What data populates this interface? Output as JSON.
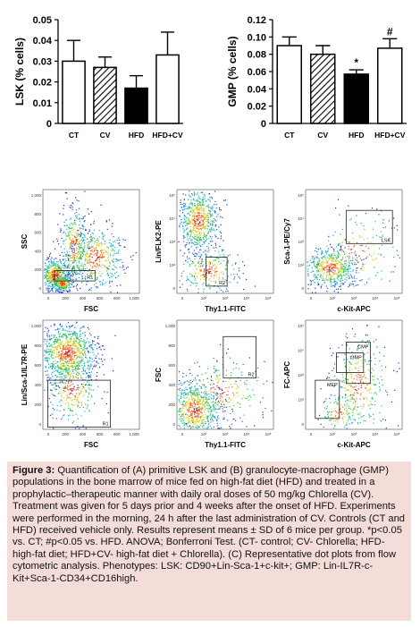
{
  "chart_data": [
    {
      "type": "bar",
      "panel": "A",
      "ylabel": "LSK (% cells)",
      "categories": [
        "CT",
        "CV",
        "HFD",
        "HFD+CV"
      ],
      "values": [
        0.03,
        0.027,
        0.017,
        0.033
      ],
      "errors": [
        0.01,
        0.005,
        0.006,
        0.011
      ],
      "ylim": [
        0,
        0.05
      ],
      "yticks": [
        "0",
        "0.01",
        "0.02",
        "0.03",
        "0.04",
        "0.05"
      ],
      "annotations": [
        "",
        "",
        "",
        ""
      ],
      "fills": [
        "white",
        "hatch",
        "black",
        "white"
      ]
    },
    {
      "type": "bar",
      "panel": "B",
      "ylabel": "GMP (% cells)",
      "categories": [
        "CT",
        "CV",
        "HFD",
        "HFD+CV"
      ],
      "values": [
        0.09,
        0.08,
        0.057,
        0.087
      ],
      "errors": [
        0.01,
        0.01,
        0.005,
        0.011
      ],
      "ylim": [
        0,
        0.12
      ],
      "yticks": [
        "0",
        "0.02",
        "0.04",
        "0.06",
        "0.08",
        "0.10",
        "0.12"
      ],
      "annotations": [
        "",
        "",
        "*",
        "#"
      ],
      "fills": [
        "white",
        "hatch",
        "black",
        "white"
      ]
    }
  ],
  "flow": {
    "plots": [
      {
        "ylabel": "SSC",
        "xlabel": "FSC",
        "gate": "R1"
      },
      {
        "ylabel": "Lin/FLK2-PE",
        "xlabel": "Thy1.1-FITC",
        "gate": "R2"
      },
      {
        "ylabel": "Sca-1-PE/Cy7",
        "xlabel": "c-Kit-APC",
        "gate": "LSK"
      },
      {
        "ylabel": "Lin/Sca-1/IL7R-PE",
        "xlabel": "FSC",
        "gate": "R1"
      },
      {
        "ylabel": "FSC",
        "xlabel": "Thy1.1-FITC",
        "gate": "R2"
      },
      {
        "ylabel": "FC-APC",
        "xlabel": "c-Kit-APC",
        "gate": "CMP",
        "gate2": "GMP",
        "gate3": "MEP"
      }
    ],
    "lin_ticks": [
      "1,000",
      "800",
      "600",
      "400",
      "200",
      "0"
    ],
    "lin_xticks": [
      "0",
      "200",
      "400",
      "600",
      "800",
      "1,000"
    ],
    "log_ticks": [
      "10⁵",
      "10⁴",
      "10³",
      "10²",
      "0"
    ]
  },
  "caption": {
    "label": "Figure 3:",
    "body": " Quantification of (A) primitive LSK and (B) granulocyte-macrophage (GMP) populations in the bone marrow of mice fed on high-fat diet (HFD) and treated in a prophylactic–therapeutic manner with daily oral doses of 50 mg/kg Chlorella (CV). Treatment was given for 5 days prior and 4 weeks after the onset of HFD. Experiments were performed in the morning, 24 h after the last administration of CV. Controls (CT and HFD) received vehicle only. Results represent means ± SD of 6 mice per group. *p<0.05 vs. CT; #p<0.05 vs. HFD. ANOVA; Bonferroni Test. (CT- control; CV- Chlorella; HFD- high-fat diet; HFD+CV- high-fat diet + Chlorella). (C) Representative dot plots from flow cytometric analysis. Phenotypes: LSK: CD90+Lin-Sca-1+c-kit+; GMP: Lin-IL7R-c-Kit+Sca-1-CD34+CD16high."
  }
}
